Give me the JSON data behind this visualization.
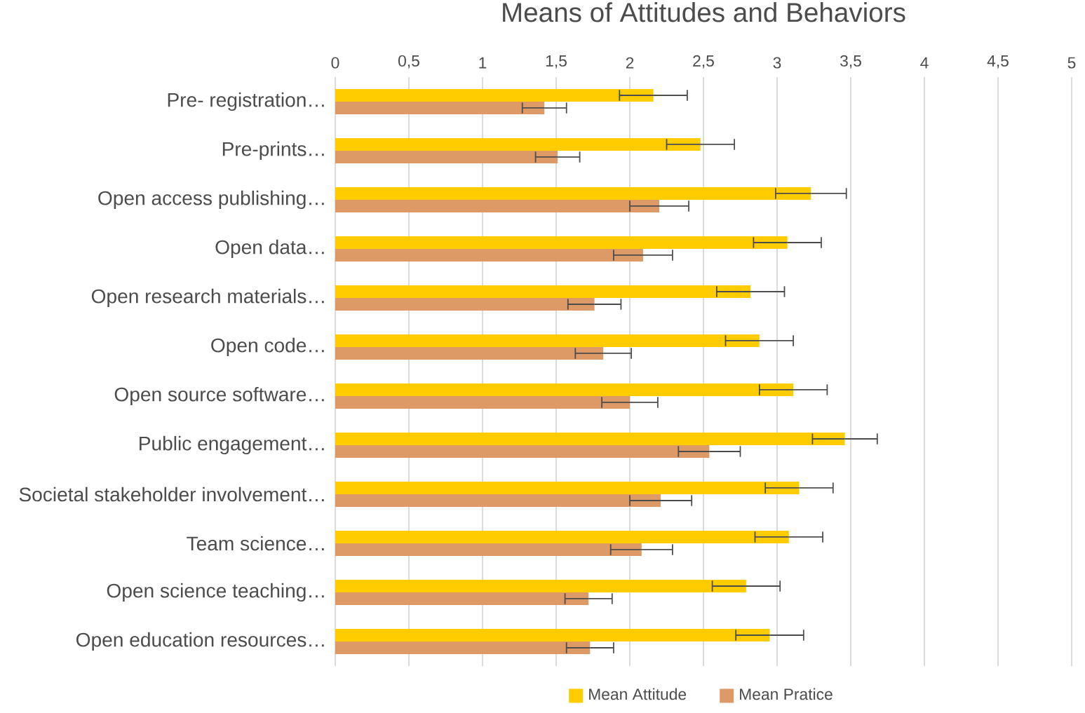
{
  "chart_data": {
    "type": "bar",
    "orientation": "horizontal",
    "title": "Means of Attitudes and Behaviors",
    "categories": [
      "Pre- registration…",
      "Pre-prints…",
      "Open access publishing…",
      "Open data…",
      "Open research materials…",
      "Open code…",
      "Open source software…",
      "Public engagement…",
      "Societal stakeholder involvement…",
      "Team science…",
      "Open science teaching…",
      "Open education resources…"
    ],
    "series": [
      {
        "name": "Mean Attitude",
        "color": "#ffcc00",
        "values": [
          2.16,
          2.48,
          3.23,
          3.07,
          2.82,
          2.88,
          3.11,
          3.46,
          3.15,
          3.08,
          2.79,
          2.95
        ],
        "errors": [
          0.23,
          0.23,
          0.24,
          0.23,
          0.23,
          0.23,
          0.23,
          0.22,
          0.23,
          0.23,
          0.23,
          0.23
        ]
      },
      {
        "name": "Mean Pratice",
        "color": "#dd9966",
        "values": [
          1.42,
          1.51,
          2.2,
          2.09,
          1.76,
          1.82,
          2.0,
          2.54,
          2.21,
          2.08,
          1.72,
          1.73
        ],
        "errors": [
          0.15,
          0.15,
          0.2,
          0.2,
          0.18,
          0.19,
          0.19,
          0.21,
          0.21,
          0.21,
          0.16,
          0.16
        ]
      }
    ],
    "xlim": [
      0,
      5
    ],
    "xticks": [
      0,
      {
        "value": 0.5,
        "label": "0,5"
      },
      1,
      {
        "value": 1.5,
        "label": "1,5"
      },
      2,
      {
        "value": 2.5,
        "label": "2,5"
      },
      3,
      {
        "value": 3.5,
        "label": "3,5"
      },
      4,
      {
        "value": 4.5,
        "label": "4,5"
      },
      5
    ],
    "grid": "x",
    "legend": "bottom"
  }
}
